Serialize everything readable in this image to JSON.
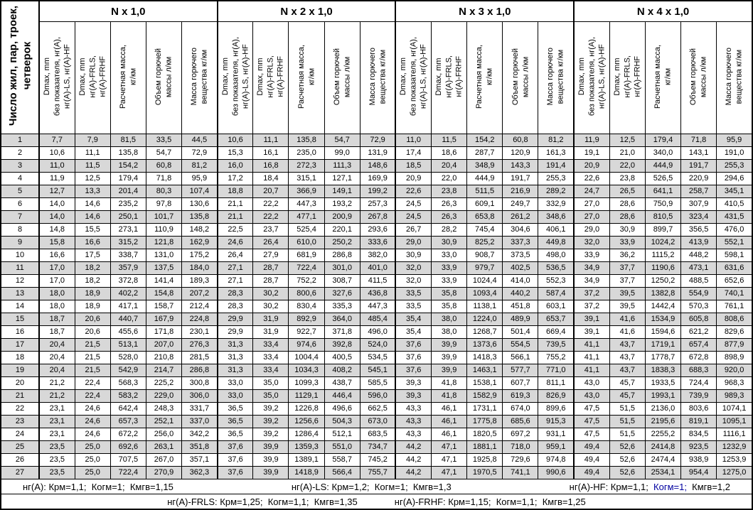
{
  "colors": {
    "stripe": "#d8d8d8",
    "accent_blue": "#0000a0",
    "border": "#000000"
  },
  "table": {
    "corner_header": "Число жил, пар, троек,\nчетверок",
    "groups": [
      {
        "label": "N x 1,0"
      },
      {
        "label": "N x 2 x 1,0"
      },
      {
        "label": "N x 3 x 1,0"
      },
      {
        "label": "N x 4 x 1,0"
      }
    ],
    "sub_headers": [
      "Dmax, mm\nбез показателя, нг(А),\nнг(А)-LS, нг(А)-HF",
      "Dmax, mm\nнг(А)-FRLS,\nнг(А)-FRHF",
      "Расчетная масса,\nкг/км",
      "Объем горючей\nмассы л/км",
      "Масса горючего\nвещества кг/км"
    ],
    "rows": [
      {
        "n": "1",
        "cells": [
          "7,7",
          "7,9",
          "81,5",
          "33,5",
          "44,5",
          "10,6",
          "11,1",
          "135,8",
          "54,7",
          "72,9",
          "11,0",
          "11,5",
          "154,2",
          "60,8",
          "81,2",
          "11,9",
          "12,5",
          "179,4",
          "71,8",
          "95,9"
        ]
      },
      {
        "n": "2",
        "cells": [
          "10,6",
          "11,1",
          "135,8",
          "54,7",
          "72,9",
          "15,3",
          "16,1",
          "235,0",
          "99,0",
          "131,9",
          "17,4",
          "18,6",
          "287,7",
          "120,9",
          "161,3",
          "19,1",
          "21,0",
          "340,0",
          "143,1",
          "191,0"
        ]
      },
      {
        "n": "3",
        "cells": [
          "11,0",
          "11,5",
          "154,2",
          "60,8",
          "81,2",
          "16,0",
          "16,8",
          "272,3",
          "111,3",
          "148,6",
          "18,5",
          "20,4",
          "348,9",
          "143,3",
          "191,4",
          "20,9",
          "22,0",
          "444,9",
          "191,7",
          "255,3"
        ]
      },
      {
        "n": "4",
        "cells": [
          "11,9",
          "12,5",
          "179,4",
          "71,8",
          "95,9",
          "17,2",
          "18,4",
          "315,1",
          "127,1",
          "169,9",
          "20,9",
          "22,0",
          "444,9",
          "191,7",
          "255,3",
          "22,6",
          "23,8",
          "526,5",
          "220,9",
          "294,6"
        ]
      },
      {
        "n": "5",
        "cells": [
          "12,7",
          "13,3",
          "201,4",
          "80,3",
          "107,4",
          "18,8",
          "20,7",
          "366,9",
          "149,1",
          "199,2",
          "22,6",
          "23,8",
          "511,5",
          "216,9",
          "289,2",
          "24,7",
          "26,5",
          "641,1",
          "258,7",
          "345,1"
        ]
      },
      {
        "n": "6",
        "cells": [
          "14,0",
          "14,6",
          "235,2",
          "97,8",
          "130,6",
          "21,1",
          "22,2",
          "447,3",
          "193,2",
          "257,3",
          "24,5",
          "26,3",
          "609,1",
          "249,7",
          "332,9",
          "27,0",
          "28,6",
          "750,9",
          "307,9",
          "410,5"
        ]
      },
      {
        "n": "7",
        "cells": [
          "14,0",
          "14,6",
          "250,1",
          "101,7",
          "135,8",
          "21,1",
          "22,2",
          "477,1",
          "200,9",
          "267,8",
          "24,5",
          "26,3",
          "653,8",
          "261,2",
          "348,6",
          "27,0",
          "28,6",
          "810,5",
          "323,4",
          "431,5"
        ]
      },
      {
        "n": "8",
        "cells": [
          "14,8",
          "15,5",
          "273,1",
          "110,9",
          "148,2",
          "22,5",
          "23,7",
          "525,4",
          "220,1",
          "293,6",
          "26,7",
          "28,2",
          "745,4",
          "304,6",
          "406,1",
          "29,0",
          "30,9",
          "899,7",
          "356,5",
          "476,0"
        ]
      },
      {
        "n": "9",
        "cells": [
          "15,8",
          "16,6",
          "315,2",
          "121,8",
          "162,9",
          "24,6",
          "26,4",
          "610,0",
          "250,2",
          "333,6",
          "29,0",
          "30,9",
          "825,2",
          "337,3",
          "449,8",
          "32,0",
          "33,9",
          "1024,2",
          "413,9",
          "552,1"
        ]
      },
      {
        "n": "10",
        "cells": [
          "16,6",
          "17,5",
          "338,7",
          "131,0",
          "175,2",
          "26,4",
          "27,9",
          "681,9",
          "286,8",
          "382,0",
          "30,9",
          "33,0",
          "908,7",
          "373,5",
          "498,0",
          "33,9",
          "36,2",
          "1115,2",
          "448,2",
          "598,1"
        ]
      },
      {
        "n": "11",
        "cells": [
          "17,0",
          "18,2",
          "357,9",
          "137,5",
          "184,0",
          "27,1",
          "28,7",
          "722,4",
          "301,0",
          "401,0",
          "32,0",
          "33,9",
          "979,7",
          "402,5",
          "536,5",
          "34,9",
          "37,7",
          "1190,6",
          "473,1",
          "631,6"
        ]
      },
      {
        "n": "12",
        "cells": [
          "17,0",
          "18,2",
          "372,8",
          "141,4",
          "189,3",
          "27,1",
          "28,7",
          "752,2",
          "308,7",
          "411,5",
          "32,0",
          "33,9",
          "1024,4",
          "414,0",
          "552,3",
          "34,9",
          "37,7",
          "1250,2",
          "488,5",
          "652,6"
        ]
      },
      {
        "n": "13",
        "cells": [
          "18,0",
          "18,9",
          "402,2",
          "154,8",
          "207,2",
          "28,3",
          "30,2",
          "800,6",
          "327,6",
          "436,8",
          "33,5",
          "35,8",
          "1093,4",
          "440,2",
          "587,4",
          "37,2",
          "39,5",
          "1382,8",
          "554,9",
          "740,1"
        ]
      },
      {
        "n": "14",
        "cells": [
          "18,0",
          "18,9",
          "417,1",
          "158,7",
          "212,4",
          "28,3",
          "30,2",
          "830,4",
          "335,3",
          "447,3",
          "33,5",
          "35,8",
          "1138,1",
          "451,8",
          "603,1",
          "37,2",
          "39,5",
          "1442,4",
          "570,3",
          "761,1"
        ]
      },
      {
        "n": "15",
        "cells": [
          "18,7",
          "20,6",
          "440,7",
          "167,9",
          "224,8",
          "29,9",
          "31,9",
          "892,9",
          "364,0",
          "485,4",
          "35,4",
          "38,0",
          "1224,0",
          "489,9",
          "653,7",
          "39,1",
          "41,6",
          "1534,9",
          "605,8",
          "808,6"
        ]
      },
      {
        "n": "16",
        "cells": [
          "18,7",
          "20,6",
          "455,6",
          "171,8",
          "230,1",
          "29,9",
          "31,9",
          "922,7",
          "371,8",
          "496,0",
          "35,4",
          "38,0",
          "1268,7",
          "501,4",
          "669,4",
          "39,1",
          "41,6",
          "1594,6",
          "621,2",
          "829,6"
        ]
      },
      {
        "n": "17",
        "cells": [
          "20,4",
          "21,5",
          "513,1",
          "207,0",
          "276,3",
          "31,3",
          "33,4",
          "974,6",
          "392,8",
          "524,0",
          "37,6",
          "39,9",
          "1373,6",
          "554,5",
          "739,5",
          "41,1",
          "43,7",
          "1719,1",
          "657,4",
          "877,9"
        ]
      },
      {
        "n": "18",
        "cells": [
          "20,4",
          "21,5",
          "528,0",
          "210,8",
          "281,5",
          "31,3",
          "33,4",
          "1004,4",
          "400,5",
          "534,5",
          "37,6",
          "39,9",
          "1418,3",
          "566,1",
          "755,2",
          "41,1",
          "43,7",
          "1778,7",
          "672,8",
          "898,9"
        ]
      },
      {
        "n": "19",
        "cells": [
          "20,4",
          "21,5",
          "542,9",
          "214,7",
          "286,8",
          "31,3",
          "33,4",
          "1034,3",
          "408,2",
          "545,1",
          "37,6",
          "39,9",
          "1463,1",
          "577,7",
          "771,0",
          "41,1",
          "43,7",
          "1838,3",
          "688,3",
          "920,0"
        ]
      },
      {
        "n": "20",
        "cells": [
          "21,2",
          "22,4",
          "568,3",
          "225,2",
          "300,8",
          "33,0",
          "35,0",
          "1099,3",
          "438,7",
          "585,5",
          "39,3",
          "41,8",
          "1538,1",
          "607,7",
          "811,1",
          "43,0",
          "45,7",
          "1933,5",
          "724,4",
          "968,3"
        ]
      },
      {
        "n": "21",
        "cells": [
          "21,2",
          "22,4",
          "583,2",
          "229,0",
          "306,0",
          "33,0",
          "35,0",
          "1129,1",
          "446,4",
          "596,0",
          "39,3",
          "41,8",
          "1582,9",
          "619,3",
          "826,9",
          "43,0",
          "45,7",
          "1993,1",
          "739,9",
          "989,3"
        ]
      },
      {
        "n": "22",
        "cells": [
          "23,1",
          "24,6",
          "642,4",
          "248,3",
          "331,7",
          "36,5",
          "39,2",
          "1226,8",
          "496,6",
          "662,5",
          "43,3",
          "46,1",
          "1731,1",
          "674,0",
          "899,6",
          "47,5",
          "51,5",
          "2136,0",
          "803,6",
          "1074,1"
        ]
      },
      {
        "n": "23",
        "cells": [
          "23,1",
          "24,6",
          "657,3",
          "252,1",
          "337,0",
          "36,5",
          "39,2",
          "1256,6",
          "504,3",
          "673,0",
          "43,3",
          "46,1",
          "1775,8",
          "685,6",
          "915,3",
          "47,5",
          "51,5",
          "2195,6",
          "819,1",
          "1095,1"
        ]
      },
      {
        "n": "24",
        "cells": [
          "23,1",
          "24,6",
          "672,2",
          "256,0",
          "342,2",
          "36,5",
          "39,2",
          "1286,4",
          "512,1",
          "683,5",
          "43,3",
          "46,1",
          "1820,5",
          "697,2",
          "931,1",
          "47,5",
          "51,5",
          "2255,2",
          "834,5",
          "1116,1"
        ]
      },
      {
        "n": "25",
        "cells": [
          "23,5",
          "25,0",
          "692,6",
          "263,1",
          "351,8",
          "37,6",
          "39,9",
          "1359,3",
          "551,0",
          "734,7",
          "44,2",
          "47,1",
          "1881,1",
          "718,0",
          "959,1",
          "49,4",
          "52,6",
          "2414,8",
          "923,5",
          "1232,9"
        ]
      },
      {
        "n": "26",
        "cells": [
          "23,5",
          "25,0",
          "707,5",
          "267,0",
          "357,1",
          "37,6",
          "39,9",
          "1389,1",
          "558,7",
          "745,2",
          "44,2",
          "47,1",
          "1925,8",
          "729,6",
          "974,8",
          "49,4",
          "52,6",
          "2474,4",
          "938,9",
          "1253,9"
        ]
      },
      {
        "n": "27",
        "cells": [
          "23,5",
          "25,0",
          "722,4",
          "270,9",
          "362,3",
          "37,6",
          "39,9",
          "1418,9",
          "566,4",
          "755,7",
          "44,2",
          "47,1",
          "1970,5",
          "741,1",
          "990,6",
          "49,4",
          "52,6",
          "2534,1",
          "954,4",
          "1275,0"
        ]
      }
    ]
  },
  "footer": {
    "rows": [
      {
        "layout": "between",
        "segments": [
          {
            "parts": [
              {
                "t": "нг(А): Крм=1,1;  Когм=1;  Кмгв=1,15"
              }
            ]
          },
          {
            "parts": [
              {
                "t": "нг(А)-LS: Крм=1,2;  Когм=1;  Кмгв=1,3"
              }
            ]
          },
          {
            "parts": [
              {
                "t": "нг(А)-HF: Крм=1,1;  "
              },
              {
                "t": "Когм=1;",
                "accent": true
              },
              {
                "t": "  Кмгв=1,2"
              }
            ]
          }
        ]
      },
      {
        "layout": "center",
        "segments": [
          {
            "parts": [
              {
                "t": "нг(А)-FRLS: Крм=1,25;  Когм=1,1;  Кмгв=1,35"
              }
            ]
          },
          {
            "parts": [
              {
                "t": "нг(А)-FRHF: Крм=1,15;  Когм=1,1;  Кмгв=1,25"
              }
            ]
          }
        ]
      }
    ]
  }
}
